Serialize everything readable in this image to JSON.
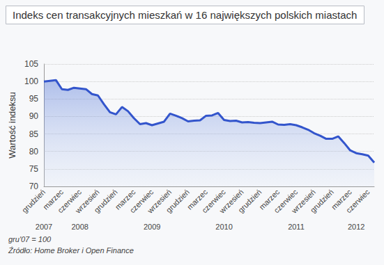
{
  "chart_data": {
    "type": "line",
    "title": "Indeks cen transakcyjnych mieszkań w 16 największych polskich miastach",
    "y_label": "Wartość indeksu",
    "notes": [
      "gru'07 = 100",
      "Źródło: Home Broker i Open Finance"
    ],
    "categories": [
      "grudzień",
      null,
      null,
      "marzec",
      null,
      null,
      "czerwiec",
      null,
      null,
      "wrzesień",
      null,
      null,
      "grudzień",
      null,
      null,
      "marzec",
      null,
      null,
      "czerwiec",
      null,
      null,
      "wrzesień",
      null,
      null,
      "grudzień",
      null,
      null,
      "marzec",
      null,
      null,
      "czerwiec",
      null,
      null,
      "wrzesień",
      null,
      null,
      "grudzień",
      null,
      null,
      "marzec",
      null,
      null,
      "czerwiec",
      null,
      null,
      "wrzesień",
      null,
      null,
      "grudzień",
      null,
      null,
      "marzec",
      null,
      null,
      "czerwiec",
      null
    ],
    "year_labels": [
      "2007",
      null,
      null,
      null,
      null,
      null,
      "2008",
      null,
      null,
      null,
      null,
      null,
      null,
      null,
      null,
      null,
      null,
      null,
      "2009",
      null,
      null,
      null,
      null,
      null,
      null,
      null,
      null,
      null,
      null,
      null,
      "2010",
      null,
      null,
      null,
      null,
      null,
      null,
      null,
      null,
      null,
      null,
      null,
      "2011",
      null,
      null,
      null,
      null,
      null,
      null,
      null,
      null,
      null,
      "2012",
      null,
      null,
      null
    ],
    "values": [
      100,
      100.2,
      100.4,
      97.8,
      97.6,
      98.2,
      98.0,
      97.8,
      96.4,
      96.0,
      93.5,
      91.2,
      90.6,
      92.7,
      91.5,
      89.5,
      87.8,
      88.1,
      87.5,
      88.0,
      88.5,
      90.8,
      90.2,
      89.5,
      88.6,
      88.8,
      88.9,
      90.2,
      90.3,
      91.0,
      89.0,
      88.7,
      88.8,
      88.3,
      88.4,
      88.2,
      88.1,
      88.3,
      88.5,
      87.7,
      87.6,
      87.8,
      87.5,
      86.9,
      86.2,
      85.2,
      84.5,
      83.6,
      83.6,
      84.3,
      82.4,
      80.3,
      79.5,
      79.2,
      78.8,
      76.8
    ],
    "color": "#3355cc",
    "ylim": [
      70,
      105
    ],
    "yticks": [
      70,
      75,
      80,
      85,
      90,
      95,
      100,
      105
    ],
    "grid": true
  }
}
